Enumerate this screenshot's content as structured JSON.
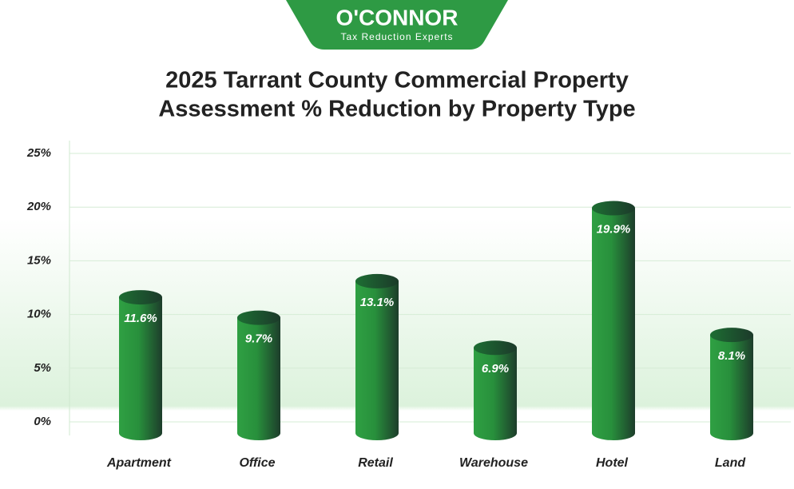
{
  "logo": {
    "name": "O'CONNOR",
    "tagline": "Tax Reduction Experts"
  },
  "chart_data": {
    "type": "bar",
    "title_lines": [
      "2025 Tarrant County Commercial Property",
      "Assessment % Reduction by Property Type"
    ],
    "categories": [
      "Apartment",
      "Office",
      "Retail",
      "Warehouse",
      "Hotel",
      "Land"
    ],
    "values": [
      11.6,
      9.7,
      13.1,
      6.9,
      19.9,
      8.1
    ],
    "value_labels": [
      "11.6%",
      "9.7%",
      "13.1%",
      "6.9%",
      "19.9%",
      "8.1%"
    ],
    "color": "#2e9a44",
    "ylim": [
      0,
      25
    ],
    "yticks": [
      {
        "value": 0,
        "label": "0%"
      },
      {
        "value": 5,
        "label": "5%"
      },
      {
        "value": 10,
        "label": "10%"
      },
      {
        "value": 15,
        "label": "15%"
      },
      {
        "value": 20,
        "label": "20%"
      },
      {
        "value": 25,
        "label": "25%"
      }
    ],
    "grid": true
  }
}
